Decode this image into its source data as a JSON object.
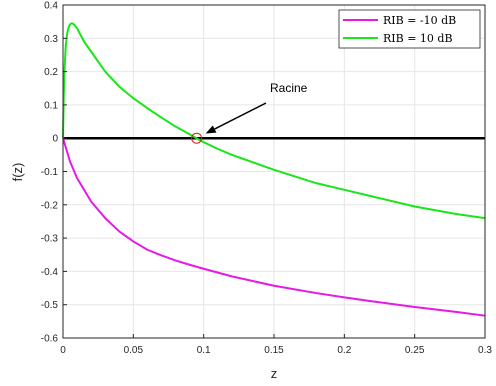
{
  "chart_data": {
    "type": "line",
    "title": "",
    "xlabel": "z",
    "ylabel": "f(z)",
    "xlim": [
      0,
      0.3
    ],
    "ylim": [
      -0.6,
      0.4
    ],
    "grid": true,
    "x_ticks": [
      "0",
      "0.05",
      "0.1",
      "0.15",
      "0.2",
      "0.25",
      "0.3"
    ],
    "y_ticks": [
      "0.4",
      "0.3",
      "0.2",
      "0.1",
      "0",
      "-0.1",
      "-0.2",
      "-0.3",
      "-0.4",
      "-0.5",
      "-0.6"
    ],
    "legend_position": "top-right",
    "series": [
      {
        "name": "RIB = -10 dB",
        "color": "#e619e6",
        "points": [
          [
            0,
            0
          ],
          [
            0.005,
            -0.07
          ],
          [
            0.01,
            -0.12
          ],
          [
            0.02,
            -0.19
          ],
          [
            0.03,
            -0.24
          ],
          [
            0.04,
            -0.28
          ],
          [
            0.05,
            -0.31
          ],
          [
            0.06,
            -0.335
          ],
          [
            0.07,
            -0.352
          ],
          [
            0.08,
            -0.367
          ],
          [
            0.09,
            -0.38
          ],
          [
            0.1,
            -0.392
          ],
          [
            0.12,
            -0.415
          ],
          [
            0.15,
            -0.443
          ],
          [
            0.18,
            -0.465
          ],
          [
            0.2,
            -0.478
          ],
          [
            0.22,
            -0.49
          ],
          [
            0.25,
            -0.507
          ],
          [
            0.28,
            -0.522
          ],
          [
            0.3,
            -0.533
          ]
        ]
      },
      {
        "name": "RIB = 10 dB",
        "color": "#19e619",
        "points": [
          [
            0,
            0
          ],
          [
            0.0005,
            0.12
          ],
          [
            0.001,
            0.2
          ],
          [
            0.002,
            0.28
          ],
          [
            0.003,
            0.315
          ],
          [
            0.004,
            0.333
          ],
          [
            0.005,
            0.342
          ],
          [
            0.006,
            0.345
          ],
          [
            0.007,
            0.344
          ],
          [
            0.008,
            0.341
          ],
          [
            0.01,
            0.33
          ],
          [
            0.015,
            0.29
          ],
          [
            0.02,
            0.26
          ],
          [
            0.03,
            0.2
          ],
          [
            0.04,
            0.155
          ],
          [
            0.05,
            0.12
          ],
          [
            0.06,
            0.09
          ],
          [
            0.07,
            0.062
          ],
          [
            0.08,
            0.035
          ],
          [
            0.09,
            0.012
          ],
          [
            0.095,
            0
          ],
          [
            0.1,
            -0.012
          ],
          [
            0.11,
            -0.032
          ],
          [
            0.12,
            -0.05
          ],
          [
            0.15,
            -0.095
          ],
          [
            0.18,
            -0.135
          ],
          [
            0.2,
            -0.155
          ],
          [
            0.22,
            -0.175
          ],
          [
            0.25,
            -0.205
          ],
          [
            0.28,
            -0.228
          ],
          [
            0.3,
            -0.24
          ]
        ]
      }
    ],
    "zero_line": {
      "y": 0,
      "color": "#000000"
    },
    "root_marker": {
      "x": 0.095,
      "y": 0,
      "color": "#e61919"
    },
    "annotation": {
      "text": "Racine",
      "x": 0.1,
      "y": 0.005
    }
  }
}
